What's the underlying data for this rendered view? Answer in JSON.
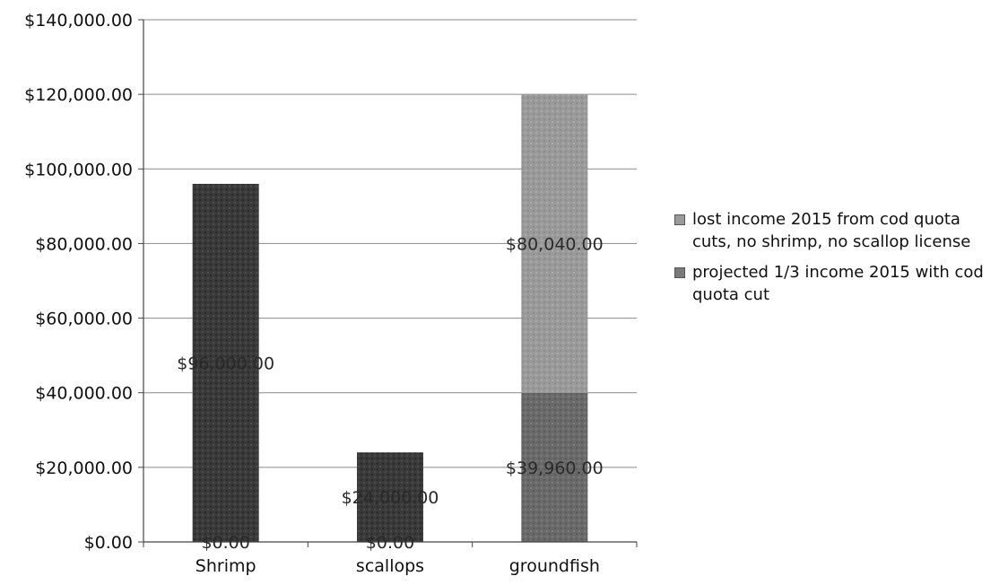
{
  "chart_data": {
    "type": "bar",
    "stacked": true,
    "categories": [
      "Shrimp",
      "scallops",
      "groundfish"
    ],
    "series": [
      {
        "name": "projected 1/3 income 2015 with cod quota cut",
        "values": [
          0,
          0,
          39960
        ],
        "labels": [
          "$0.00",
          "$0.00",
          "$39,960.00"
        ],
        "color": "#6a6a6a"
      },
      {
        "name": "lost income 2015 from cod quota cuts, no shrimp, no scallop license",
        "values": [
          96000,
          24000,
          80040
        ],
        "labels": [
          "$96,000.00",
          "$24,000.00",
          "$80,040.00"
        ],
        "color": "#3a3a3a"
      }
    ],
    "y_ticks": [
      "$0.00",
      "$20,000.00",
      "$40,000.00",
      "$60,000.00",
      "$80,000.00",
      "$100,000.00",
      "$120,000.00",
      "$140,000.00"
    ],
    "ylim": [
      0,
      140000
    ],
    "grid": true,
    "legend": "right",
    "title": "",
    "xlabel": "",
    "ylabel": ""
  }
}
